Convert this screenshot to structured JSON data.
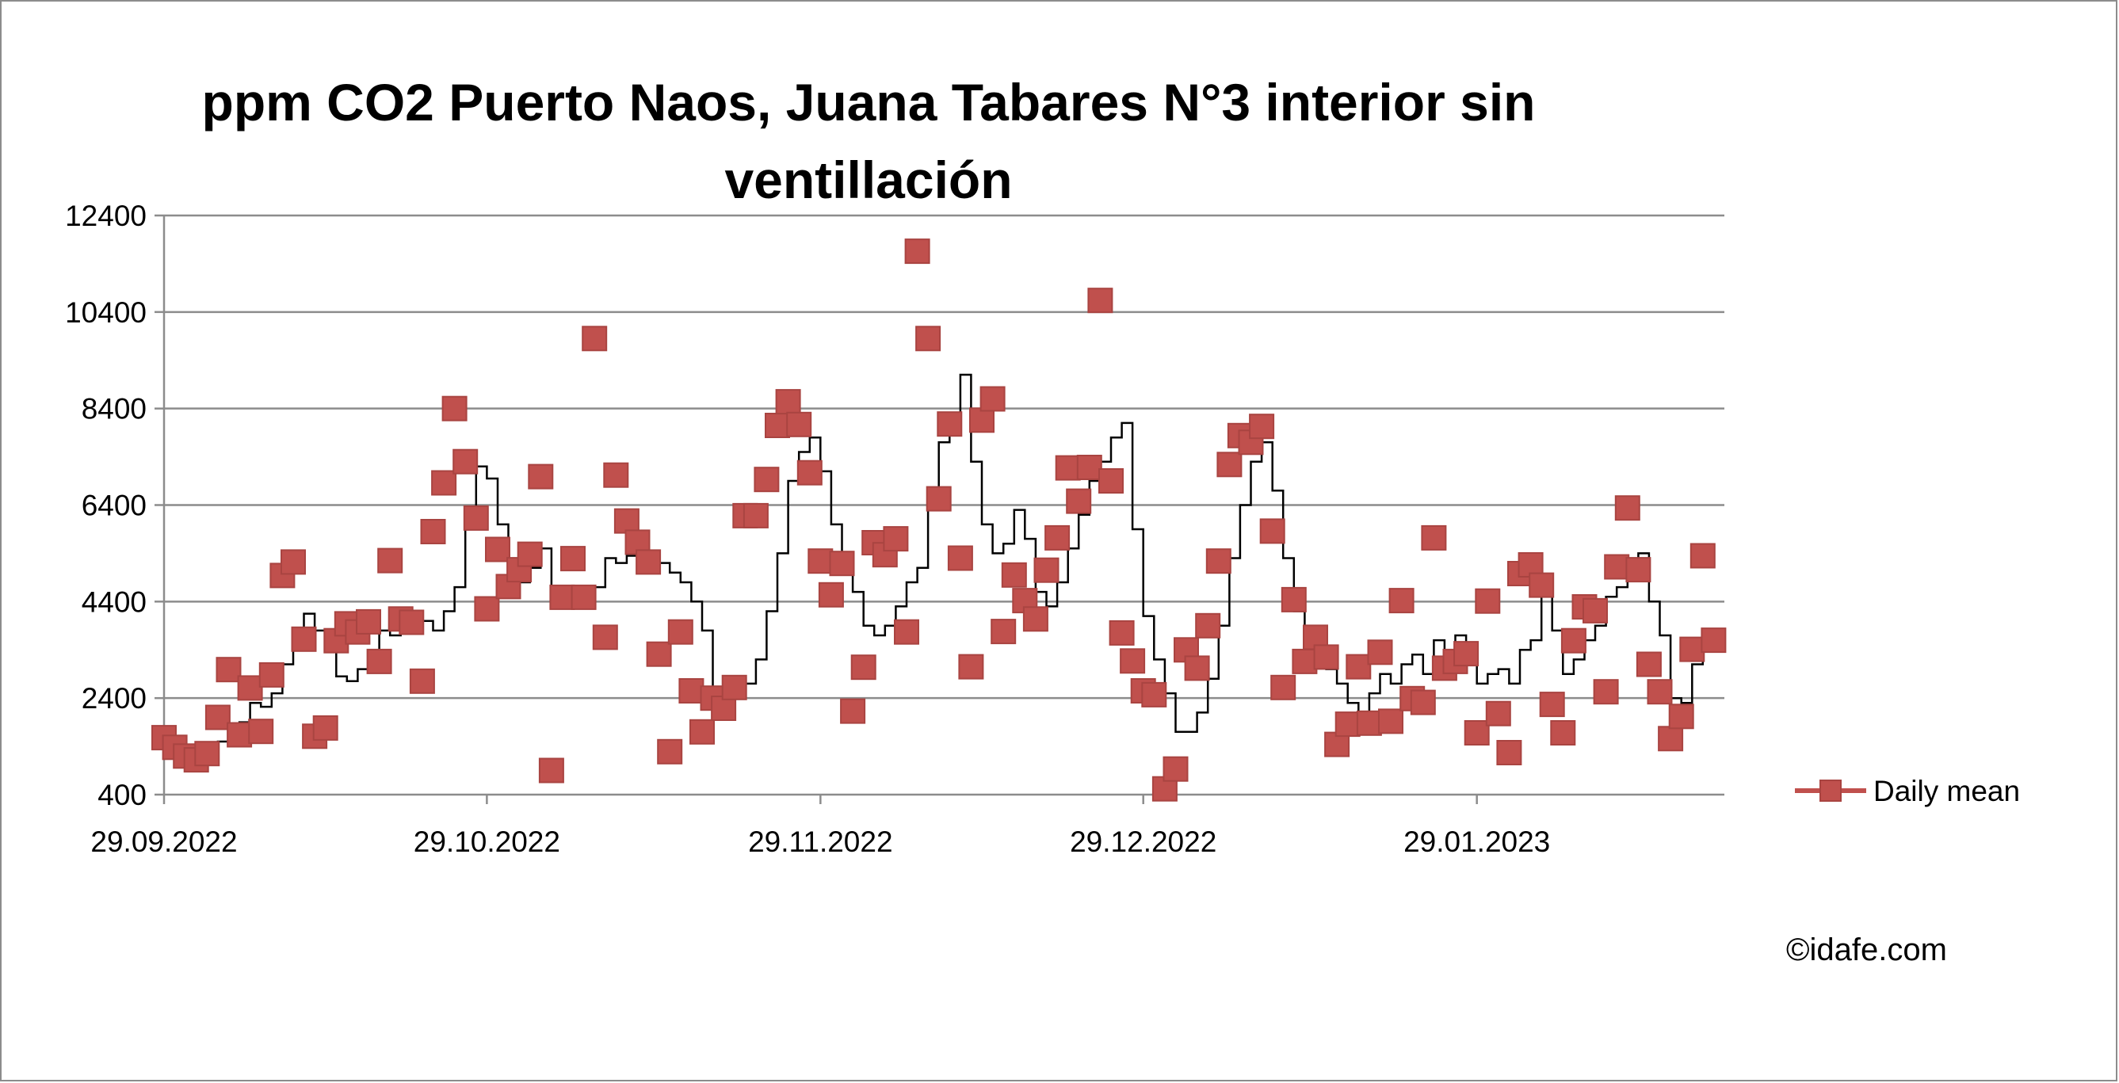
{
  "chart_data": {
    "type": "scatter",
    "title_lines": [
      "ppm CO2 Puerto Naos, Juana Tabares N°3 interior sin",
      "ventillación"
    ],
    "xlabel": "",
    "ylabel": "",
    "x_start": "29.09.2022",
    "x_ticks": [
      {
        "day": 0,
        "label": "29.09.2022"
      },
      {
        "day": 30,
        "label": "29.10.2022"
      },
      {
        "day": 61,
        "label": "29.11.2022"
      },
      {
        "day": 91,
        "label": "29.12.2022"
      },
      {
        "day": 122,
        "label": "29.01.2023"
      }
    ],
    "xlim": [
      0,
      145
    ],
    "ylim": [
      400,
      12400
    ],
    "y_ticks": [
      400,
      2400,
      4400,
      6400,
      8400,
      10400,
      12400
    ],
    "grid": "horizontal",
    "legend_position": "right",
    "colors": {
      "marker": "#c0504d",
      "marker_edge": "#a94441",
      "line": "#000000",
      "grid": "#8c8c8c",
      "frame": "#8c8c8c"
    },
    "series": [
      {
        "name": "Daily mean",
        "marker": "square",
        "points": [
          [
            0,
            1580
          ],
          [
            1,
            1380
          ],
          [
            2,
            1200
          ],
          [
            3,
            1120
          ],
          [
            4,
            1250
          ],
          [
            5,
            2000
          ],
          [
            6,
            2990
          ],
          [
            7,
            1640
          ],
          [
            8,
            2610
          ],
          [
            9,
            1710
          ],
          [
            10,
            2880
          ],
          [
            11,
            4940
          ],
          [
            12,
            5220
          ],
          [
            13,
            3620
          ],
          [
            14,
            1610
          ],
          [
            15,
            1780
          ],
          [
            16,
            3590
          ],
          [
            17,
            3940
          ],
          [
            18,
            3770
          ],
          [
            19,
            3980
          ],
          [
            20,
            3160
          ],
          [
            21,
            5250
          ],
          [
            22,
            4040
          ],
          [
            23,
            3970
          ],
          [
            24,
            2750
          ],
          [
            25,
            5850
          ],
          [
            26,
            6860
          ],
          [
            27,
            8400
          ],
          [
            28,
            7300
          ],
          [
            29,
            6130
          ],
          [
            30,
            4250
          ],
          [
            31,
            5480
          ],
          [
            32,
            4710
          ],
          [
            33,
            5060
          ],
          [
            34,
            5380
          ],
          [
            35,
            6990
          ],
          [
            36,
            900
          ],
          [
            37,
            4490
          ],
          [
            38,
            5290
          ],
          [
            39,
            4490
          ],
          [
            40,
            9850
          ],
          [
            41,
            3660
          ],
          [
            42,
            7020
          ],
          [
            43,
            6070
          ],
          [
            44,
            5630
          ],
          [
            45,
            5220
          ],
          [
            46,
            3310
          ],
          [
            47,
            1290
          ],
          [
            48,
            3770
          ],
          [
            49,
            2550
          ],
          [
            50,
            1700
          ],
          [
            51,
            2400
          ],
          [
            52,
            2190
          ],
          [
            53,
            2620
          ],
          [
            54,
            6180
          ],
          [
            55,
            6180
          ],
          [
            56,
            6930
          ],
          [
            57,
            8050
          ],
          [
            58,
            8540
          ],
          [
            59,
            8070
          ],
          [
            60,
            7070
          ],
          [
            61,
            5240
          ],
          [
            62,
            4540
          ],
          [
            63,
            5190
          ],
          [
            64,
            2130
          ],
          [
            65,
            3040
          ],
          [
            66,
            5620
          ],
          [
            67,
            5370
          ],
          [
            68,
            5700
          ],
          [
            69,
            3770
          ],
          [
            70,
            11660
          ],
          [
            71,
            9850
          ],
          [
            72,
            6530
          ],
          [
            73,
            8080
          ],
          [
            74,
            5300
          ],
          [
            75,
            3050
          ],
          [
            76,
            8160
          ],
          [
            77,
            8600
          ],
          [
            78,
            3780
          ],
          [
            79,
            4950
          ],
          [
            80,
            4420
          ],
          [
            81,
            4040
          ],
          [
            82,
            5050
          ],
          [
            83,
            5720
          ],
          [
            84,
            7170
          ],
          [
            85,
            6480
          ],
          [
            86,
            7180
          ],
          [
            87,
            10640
          ],
          [
            88,
            6900
          ],
          [
            89,
            3750
          ],
          [
            90,
            3170
          ],
          [
            91,
            2550
          ],
          [
            92,
            2470
          ],
          [
            93,
            520
          ],
          [
            94,
            930
          ],
          [
            95,
            3400
          ],
          [
            96,
            3020
          ],
          [
            97,
            3900
          ],
          [
            98,
            5240
          ],
          [
            99,
            7240
          ],
          [
            100,
            7840
          ],
          [
            101,
            7700
          ],
          [
            102,
            8030
          ],
          [
            103,
            5860
          ],
          [
            104,
            2620
          ],
          [
            105,
            4440
          ],
          [
            106,
            3160
          ],
          [
            107,
            3660
          ],
          [
            108,
            3250
          ],
          [
            109,
            1440
          ],
          [
            110,
            1860
          ],
          [
            111,
            3050
          ],
          [
            112,
            1880
          ],
          [
            113,
            3350
          ],
          [
            114,
            1920
          ],
          [
            115,
            4420
          ],
          [
            116,
            2390
          ],
          [
            117,
            2310
          ],
          [
            118,
            5720
          ],
          [
            119,
            3020
          ],
          [
            120,
            3160
          ],
          [
            121,
            3320
          ],
          [
            122,
            1680
          ],
          [
            123,
            4410
          ],
          [
            124,
            2080
          ],
          [
            125,
            1270
          ],
          [
            126,
            4980
          ],
          [
            127,
            5160
          ],
          [
            128,
            4740
          ],
          [
            129,
            2270
          ],
          [
            130,
            1680
          ],
          [
            131,
            3590
          ],
          [
            132,
            4290
          ],
          [
            133,
            4210
          ],
          [
            134,
            2530
          ],
          [
            135,
            5120
          ],
          [
            136,
            6340
          ],
          [
            137,
            5060
          ],
          [
            138,
            3100
          ],
          [
            139,
            2530
          ],
          [
            140,
            1560
          ],
          [
            141,
            2020
          ],
          [
            142,
            3410
          ],
          [
            143,
            5350
          ],
          [
            144,
            3600
          ]
        ]
      },
      {
        "name": "",
        "type": "line",
        "style": "step",
        "points": [
          [
            4,
            1340
          ],
          [
            5,
            1500
          ],
          [
            6,
            1850
          ],
          [
            7,
            1900
          ],
          [
            8,
            2300
          ],
          [
            9,
            2220
          ],
          [
            10,
            2500
          ],
          [
            11,
            3100
          ],
          [
            12,
            3550
          ],
          [
            13,
            4150
          ],
          [
            14,
            3800
          ],
          [
            15,
            3450
          ],
          [
            16,
            2850
          ],
          [
            17,
            2750
          ],
          [
            18,
            3000
          ],
          [
            19,
            3300
          ],
          [
            20,
            3800
          ],
          [
            21,
            3700
          ],
          [
            22,
            3900
          ],
          [
            23,
            4100
          ],
          [
            24,
            4000
          ],
          [
            25,
            3800
          ],
          [
            26,
            4200
          ],
          [
            27,
            4700
          ],
          [
            28,
            6000
          ],
          [
            29,
            7200
          ],
          [
            30,
            6950
          ],
          [
            31,
            6000
          ],
          [
            32,
            5200
          ],
          [
            33,
            4800
          ],
          [
            34,
            5100
          ],
          [
            35,
            5500
          ],
          [
            36,
            4500
          ],
          [
            37,
            4550
          ],
          [
            38,
            4650
          ],
          [
            39,
            4600
          ],
          [
            40,
            4700
          ],
          [
            41,
            5300
          ],
          [
            42,
            5200
          ],
          [
            43,
            5350
          ],
          [
            44,
            5400
          ],
          [
            45,
            5350
          ],
          [
            46,
            5200
          ],
          [
            47,
            5000
          ],
          [
            48,
            4800
          ],
          [
            49,
            4400
          ],
          [
            50,
            3800
          ],
          [
            51,
            2300
          ],
          [
            52,
            2200
          ],
          [
            53,
            2400
          ],
          [
            54,
            2700
          ],
          [
            55,
            3200
          ],
          [
            56,
            4200
          ],
          [
            57,
            5400
          ],
          [
            58,
            6900
          ],
          [
            59,
            7500
          ],
          [
            60,
            7800
          ],
          [
            61,
            7100
          ],
          [
            62,
            6000
          ],
          [
            63,
            5100
          ],
          [
            64,
            4600
          ],
          [
            65,
            3900
          ],
          [
            66,
            3700
          ],
          [
            67,
            3900
          ],
          [
            68,
            4300
          ],
          [
            69,
            4800
          ],
          [
            70,
            5100
          ],
          [
            71,
            6700
          ],
          [
            72,
            7700
          ],
          [
            73,
            8300
          ],
          [
            74,
            9100
          ],
          [
            75,
            7300
          ],
          [
            76,
            6000
          ],
          [
            77,
            5400
          ],
          [
            78,
            5600
          ],
          [
            79,
            6300
          ],
          [
            80,
            5700
          ],
          [
            81,
            4600
          ],
          [
            82,
            4300
          ],
          [
            83,
            4800
          ],
          [
            84,
            5500
          ],
          [
            85,
            6200
          ],
          [
            86,
            6900
          ],
          [
            87,
            7300
          ],
          [
            88,
            7800
          ],
          [
            89,
            8100
          ],
          [
            90,
            5900
          ],
          [
            91,
            4100
          ],
          [
            92,
            3200
          ],
          [
            93,
            2500
          ],
          [
            94,
            1700
          ],
          [
            95,
            1700
          ],
          [
            96,
            2100
          ],
          [
            97,
            2800
          ],
          [
            98,
            3900
          ],
          [
            99,
            5300
          ],
          [
            100,
            6400
          ],
          [
            101,
            7300
          ],
          [
            102,
            7700
          ],
          [
            103,
            6700
          ],
          [
            104,
            5300
          ],
          [
            105,
            4200
          ],
          [
            106,
            3500
          ],
          [
            107,
            3300
          ],
          [
            108,
            3000
          ],
          [
            109,
            2700
          ],
          [
            110,
            2300
          ],
          [
            111,
            2100
          ],
          [
            112,
            2500
          ],
          [
            113,
            2900
          ],
          [
            114,
            2700
          ],
          [
            115,
            3100
          ],
          [
            116,
            3300
          ],
          [
            117,
            2900
          ],
          [
            118,
            3600
          ],
          [
            119,
            3400
          ],
          [
            120,
            3700
          ],
          [
            121,
            3100
          ],
          [
            122,
            2700
          ],
          [
            123,
            2900
          ],
          [
            124,
            3000
          ],
          [
            125,
            2700
          ],
          [
            126,
            3400
          ],
          [
            127,
            3600
          ],
          [
            128,
            4500
          ],
          [
            129,
            3800
          ],
          [
            130,
            2900
          ],
          [
            131,
            3200
          ],
          [
            132,
            3600
          ],
          [
            133,
            3900
          ],
          [
            134,
            4500
          ],
          [
            135,
            4700
          ],
          [
            136,
            5100
          ],
          [
            137,
            5400
          ],
          [
            138,
            4400
          ],
          [
            139,
            3700
          ],
          [
            140,
            2400
          ],
          [
            141,
            2300
          ],
          [
            142,
            3100
          ],
          [
            143,
            3600
          ],
          [
            144,
            3600
          ]
        ]
      }
    ]
  },
  "legend": {
    "label": "Daily mean"
  },
  "credit": "©idafe.com"
}
